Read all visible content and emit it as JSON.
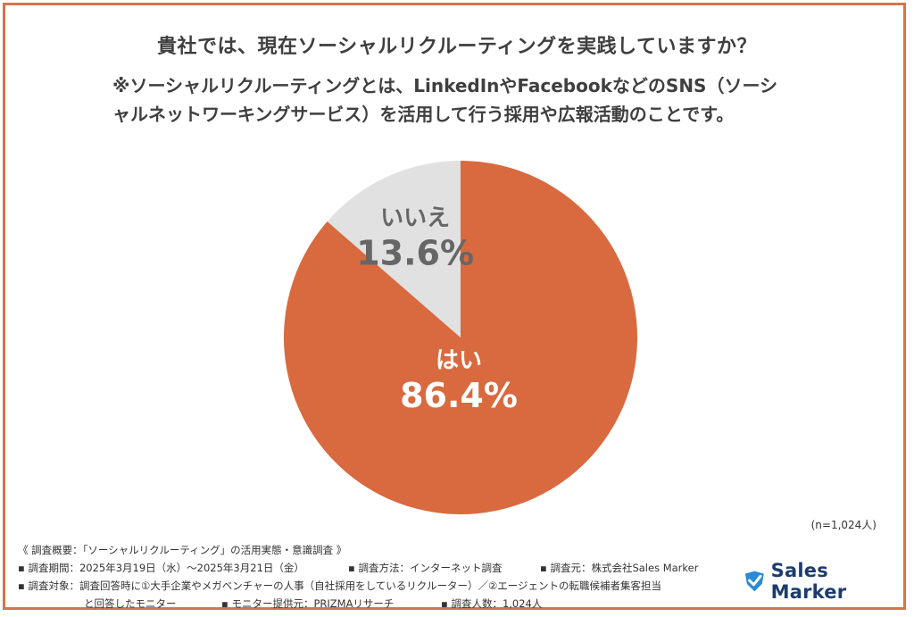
{
  "title": "貴社では、現在ソーシャルリクルーティングを実践していますか？",
  "note_line1": "※ソーシャルリクルーティングとは、LinkedInやFacebookなどのSNS（ソーシ",
  "note_line2": "ャルネットワーキングサービス）を活用して行う採用や広報活動のことです。",
  "chart_data": {
    "type": "pie",
    "slices": [
      {
        "label": "はい",
        "value": 86.4,
        "value_label": "86.4%",
        "color": "#d9693e",
        "text_color": "#ffffff"
      },
      {
        "label": "いいえ",
        "value": 13.6,
        "value_label": "13.6%",
        "color": "#e1e1e1",
        "text_color": "#666666"
      }
    ],
    "start": "12 o'clock",
    "direction": "clockwise"
  },
  "sample_size": "(n=1,024人)",
  "summary": {
    "heading": "《 調査概要：「ソーシャルリクルーティング」の活用実態・意識調査 》",
    "period": "▪ 調査期間：2025年3月19日（水）〜2025年3月21日（金）",
    "method": "▪ 調査方法：インターネット調査",
    "source": "▪ 調査元：株式会社Sales Marker",
    "target1": "▪ 調査対象：調査回答時に①大手企業やメガベンチャーの人事（自社採用をしているリクルーター）／②エージェントの転職候補者集客担当",
    "target2": "と回答したモニター",
    "provider": "▪ モニター提供元：PRIZMAリサーチ",
    "count": "▪ 調査人数：1,024人"
  },
  "logo": {
    "text": "Sales Marker",
    "icon": "sales-marker-logo-icon",
    "color": "#1d3c6e",
    "accent": "#2a8bd8"
  }
}
